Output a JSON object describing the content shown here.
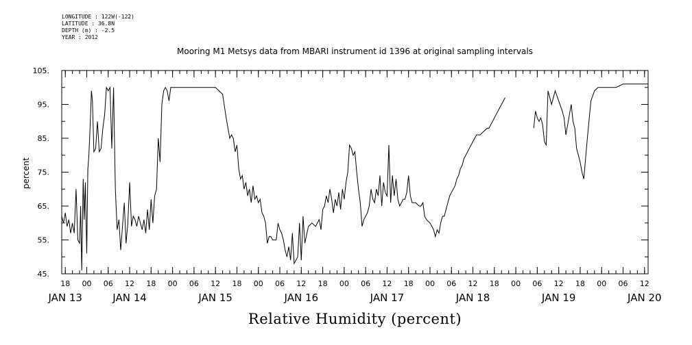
{
  "meta": {
    "longitude": "LONGITUDE : 122W(-122)",
    "latitude": "LATITUDE : 36.8N",
    "depth": "DEPTH (m) : -2.5",
    "year": "YEAR : 2012"
  },
  "chart_data": {
    "type": "line",
    "title": "Mooring M1 Metsys data from MBARI instrument id 1396 at original sampling intervals",
    "xlabel": "Relative Humidity (percent)",
    "ylabel": "percent",
    "ylim": [
      45,
      105
    ],
    "yticks": [
      45,
      55,
      65,
      75,
      85,
      95,
      105
    ],
    "ytick_labels": [
      "45.",
      "55.",
      "65.",
      "75.",
      "85.",
      "95.",
      "105."
    ],
    "x_unit": "hours since Jan 13 00:00, 2012",
    "xlim": [
      17,
      180
    ],
    "hour_ticks": [
      {
        "x": 18,
        "label": "18"
      },
      {
        "x": 24,
        "label": "00"
      },
      {
        "x": 30,
        "label": "06"
      },
      {
        "x": 36,
        "label": "12"
      },
      {
        "x": 42,
        "label": "18"
      },
      {
        "x": 48,
        "label": "00"
      },
      {
        "x": 54,
        "label": "06"
      },
      {
        "x": 60,
        "label": "12"
      },
      {
        "x": 66,
        "label": "18"
      },
      {
        "x": 72,
        "label": "00"
      },
      {
        "x": 78,
        "label": "06"
      },
      {
        "x": 84,
        "label": "12"
      },
      {
        "x": 90,
        "label": "18"
      },
      {
        "x": 96,
        "label": "00"
      },
      {
        "x": 102,
        "label": "06"
      },
      {
        "x": 108,
        "label": "12"
      },
      {
        "x": 114,
        "label": "18"
      },
      {
        "x": 120,
        "label": "00"
      },
      {
        "x": 126,
        "label": "06"
      },
      {
        "x": 132,
        "label": "12"
      },
      {
        "x": 138,
        "label": "18"
      },
      {
        "x": 144,
        "label": "00"
      },
      {
        "x": 150,
        "label": "06"
      },
      {
        "x": 156,
        "label": "12"
      },
      {
        "x": 162,
        "label": "18"
      },
      {
        "x": 168,
        "label": "00"
      },
      {
        "x": 174,
        "label": "06"
      },
      {
        "x": 180,
        "label": "12"
      }
    ],
    "day_labels": [
      {
        "x": 18,
        "label": "JAN 13"
      },
      {
        "x": 36,
        "label": "JAN 14"
      },
      {
        "x": 60,
        "label": "JAN 15"
      },
      {
        "x": 84,
        "label": "JAN 16"
      },
      {
        "x": 108,
        "label": "JAN 17"
      },
      {
        "x": 132,
        "label": "JAN 18"
      },
      {
        "x": 156,
        "label": "JAN 19"
      },
      {
        "x": 180,
        "label": "JAN 20"
      }
    ],
    "segments": [
      {
        "x": [
          17.0,
          17.5,
          18.0,
          18.5,
          19.0,
          19.5,
          20.0,
          20.5,
          21.0,
          21.5,
          22.0,
          22.3,
          22.6,
          23.0,
          23.3,
          23.6,
          24.0,
          24.3,
          24.6,
          25.0,
          25.3,
          25.6,
          26.0,
          26.5,
          27.0,
          27.5,
          28.0,
          28.5,
          29.0,
          29.5,
          30.0,
          30.5,
          31.0,
          31.5,
          32.0,
          32.5,
          33.0,
          33.5,
          34.0,
          34.5,
          35.0,
          35.5,
          36.0,
          36.5,
          37.0,
          37.5,
          38.0,
          38.5,
          39.0,
          39.5,
          40.0,
          40.5,
          41.0,
          41.5,
          42.0,
          42.5,
          43.0,
          43.5,
          44.0,
          44.5,
          45.0,
          45.5,
          46.0,
          46.5,
          47.0,
          47.5,
          48.0,
          48.5,
          49.0,
          49.5,
          50.0,
          50.5,
          51.0,
          51.5,
          52.0,
          52.5,
          53.0,
          53.5,
          54.0,
          55.0,
          56.0,
          57.0,
          58.0,
          59.0,
          60.0,
          61.0,
          62.0,
          63.0,
          64.0,
          64.5,
          65.0,
          65.5,
          66.0,
          66.5,
          67.0,
          67.5,
          68.0,
          68.5,
          69.0,
          69.5,
          70.0,
          70.5,
          71.0,
          71.5,
          72.0,
          72.5,
          73.0,
          73.5,
          74.0,
          74.5,
          75.0,
          75.5,
          76.0,
          76.5,
          77.0,
          77.5,
          78.0,
          78.5,
          79.0,
          79.5,
          80.0,
          80.5,
          81.0,
          81.5,
          82.0,
          82.5,
          83.0,
          83.5,
          84.0,
          84.5,
          85.0,
          86.0,
          87.0,
          88.0,
          89.0,
          89.5,
          90.0,
          90.5,
          91.0,
          91.5,
          92.0,
          92.5,
          93.0,
          93.5,
          94.0,
          94.5,
          95.0,
          95.5,
          96.0,
          96.5,
          97.0,
          97.5,
          98.0,
          98.5,
          99.0,
          99.5,
          100.0,
          100.5,
          101.0,
          101.5,
          102.0,
          102.5,
          103.0,
          103.5,
          104.0,
          104.5,
          105.0,
          105.5,
          106.0,
          106.5,
          107.0,
          107.5,
          108.0,
          108.5,
          109.0,
          109.5,
          110.0,
          110.5,
          111.0,
          111.5,
          112.0,
          112.5,
          113.0,
          113.5,
          114.0,
          114.5,
          115.0,
          116.0,
          117.0,
          117.5,
          118.0,
          118.5,
          119.0,
          120.0,
          120.5,
          121.0,
          121.5,
          122.0,
          122.5,
          123.0,
          123.5,
          124.0,
          124.5,
          125.0,
          125.5,
          126.0,
          126.5,
          127.0,
          127.5,
          128.0,
          128.5,
          129.0,
          129.5,
          130.0,
          130.5,
          131.0,
          131.5,
          132.0,
          133.0,
          134.0,
          135.0,
          136.0,
          136.5,
          137.0,
          137.5,
          138.0,
          138.5,
          139.0,
          139.5,
          140.0,
          140.5,
          141.0
        ],
        "y": [
          62,
          60,
          63,
          59,
          61,
          57,
          60,
          57,
          70,
          55,
          54,
          65,
          46,
          73,
          61,
          72,
          51,
          76,
          80,
          90,
          99,
          96,
          81,
          82,
          90,
          81,
          82,
          88,
          92,
          100,
          99,
          100,
          82,
          100,
          70,
          58,
          61,
          52,
          59,
          66,
          54,
          60,
          72,
          59,
          62,
          61,
          59,
          62,
          60,
          58,
          61,
          57,
          64,
          58,
          67,
          60,
          68,
          70,
          85,
          78,
          95,
          99,
          100,
          99,
          96,
          100,
          100,
          100,
          100,
          100,
          100,
          100,
          100,
          100,
          100,
          100,
          100,
          100,
          100,
          100,
          100,
          100,
          100,
          100,
          100,
          99,
          98,
          91,
          85,
          86,
          85,
          81,
          83,
          76,
          73,
          74,
          70,
          72,
          68,
          70,
          66,
          71,
          67,
          68,
          66,
          67,
          63,
          62,
          60,
          54,
          56,
          56,
          55,
          55,
          55,
          60,
          58,
          57,
          55,
          52,
          50,
          53,
          49,
          57,
          48,
          49,
          50,
          60,
          49,
          62,
          54,
          59,
          60,
          59,
          61,
          58,
          64,
          65,
          68,
          66,
          70,
          67,
          63,
          67,
          65,
          69,
          64,
          70,
          67,
          72,
          75,
          83,
          82,
          80,
          81,
          75,
          70,
          66,
          59,
          61,
          62,
          63,
          65,
          70,
          67,
          66,
          70,
          68,
          74,
          65,
          72,
          69,
          68,
          83,
          66,
          74,
          68,
          73,
          67,
          65,
          66,
          67,
          67,
          69,
          74,
          68,
          66,
          66,
          65,
          65,
          66,
          62,
          61,
          60,
          59,
          58,
          56,
          58,
          57,
          60,
          62,
          62,
          64,
          66,
          68,
          69,
          70,
          71,
          73,
          74,
          76,
          77,
          79,
          80,
          81,
          82,
          83,
          84,
          86,
          86,
          87,
          88,
          88,
          89,
          90,
          91,
          92,
          93,
          94,
          95,
          96,
          97
        ]
      },
      {
        "x": [
          149.0,
          149.5,
          150.0,
          150.5,
          151.0,
          151.5,
          152.0,
          152.5,
          153.0,
          154.0,
          155.0,
          156.0,
          157.0,
          157.5,
          158.0,
          158.5,
          159.0,
          159.5,
          160.0,
          160.5,
          161.0,
          161.5,
          162.0,
          162.5,
          163.0,
          164.0,
          165.0,
          166.0,
          167.0,
          168.0,
          169.0,
          170.0,
          172.0,
          174.0,
          176.0,
          178.0,
          180.0,
          181.0
        ],
        "y": [
          88,
          93,
          91,
          90,
          91,
          89,
          84,
          83,
          99,
          95,
          99,
          96,
          93,
          91,
          86,
          89,
          92,
          95,
          90,
          88,
          82,
          80,
          78,
          75,
          73,
          85,
          96,
          99,
          100,
          100,
          100,
          100,
          100,
          101,
          101,
          101,
          101,
          101
        ]
      }
    ]
  }
}
